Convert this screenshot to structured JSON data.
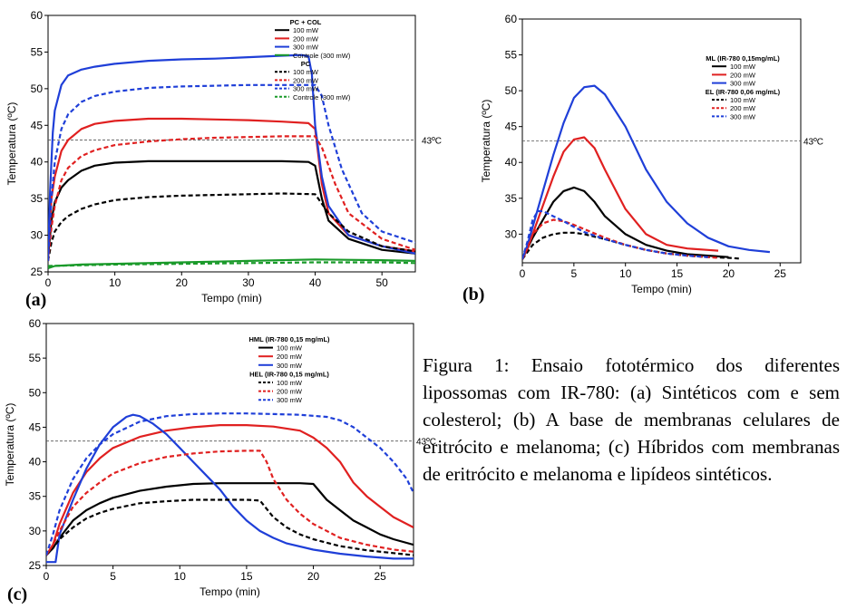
{
  "caption": "Figura 1: Ensaio fototérmico dos diferentes lipossomas com IR-780: (a) Sintéticos com e sem colesterol; (b) A base de membranas celulares de eritrócito e melanoma; (c) Híbridos com membranas de eritrócito e melanoma e lipídeos sintéticos.",
  "chart_data": [
    {
      "panel_label": "(a)",
      "type": "line",
      "xlabel": "Tempo (min)",
      "ylabel": "Temperatura (ºC)",
      "xlim": [
        0,
        55
      ],
      "ylim": [
        25,
        60
      ],
      "xticks": [
        0,
        10,
        20,
        30,
        40,
        50
      ],
      "yticks": [
        25,
        30,
        35,
        40,
        45,
        50,
        55,
        60
      ],
      "reference_line": {
        "y": 43,
        "label": "43ºC"
      },
      "legend_groups": [
        {
          "title": "PC + COL",
          "entries": [
            "100 mW",
            "200 mW",
            "300 mW",
            "Controle (300 mW)"
          ]
        },
        {
          "title": "PC",
          "entries": [
            "100 mW",
            "200 mW",
            "300 mW",
            "Controle (300 mW)"
          ]
        }
      ],
      "series": [
        {
          "group": "PC + COL",
          "color": "#000000",
          "dash": false,
          "x": [
            0,
            0.5,
            1,
            2,
            3,
            5,
            7,
            10,
            15,
            20,
            25,
            30,
            35,
            39,
            40,
            41,
            42,
            45,
            50,
            55
          ],
          "y": [
            27,
            32,
            34.5,
            36.5,
            37.5,
            38.8,
            39.5,
            39.9,
            40.1,
            40.1,
            40.1,
            40.1,
            40.1,
            40,
            39.5,
            35,
            32,
            29.5,
            28,
            27.5
          ]
        },
        {
          "group": "PC + COL",
          "color": "#e02020",
          "dash": false,
          "x": [
            0,
            0.5,
            1,
            2,
            3,
            5,
            7,
            10,
            15,
            20,
            25,
            30,
            35,
            39,
            40,
            41,
            42,
            45,
            50,
            55
          ],
          "y": [
            27,
            35,
            38,
            41.5,
            43,
            44.5,
            45.2,
            45.6,
            45.9,
            45.9,
            45.8,
            45.7,
            45.5,
            45.3,
            44.5,
            37,
            33,
            30,
            28.5,
            27.8
          ]
        },
        {
          "group": "PC + COL",
          "color": "#1f3fd8",
          "dash": false,
          "x": [
            0,
            0.3,
            0.7,
            1,
            2,
            3,
            5,
            7,
            10,
            15,
            20,
            25,
            30,
            35,
            38,
            39,
            39.5,
            40,
            41,
            42,
            45,
            50,
            55
          ],
          "y": [
            27,
            36,
            44,
            47,
            50.5,
            51.8,
            52.6,
            53,
            53.4,
            53.8,
            54,
            54.1,
            54.3,
            54.5,
            54.6,
            54.4,
            52,
            45,
            38,
            34,
            30,
            28.5,
            27.5
          ]
        },
        {
          "group": "PC + COL",
          "color": "#1a9a2a",
          "dash": false,
          "x": [
            0,
            1,
            5,
            10,
            20,
            30,
            40,
            50,
            55
          ],
          "y": [
            25.5,
            25.8,
            26,
            26.1,
            26.3,
            26.5,
            26.7,
            26.6,
            26.5
          ]
        },
        {
          "group": "PC",
          "color": "#000000",
          "dash": true,
          "x": [
            0,
            0.5,
            1,
            2,
            3,
            5,
            7,
            10,
            15,
            20,
            25,
            30,
            35,
            40,
            42,
            45,
            50,
            55
          ],
          "y": [
            26.5,
            29,
            30.5,
            31.8,
            32.6,
            33.6,
            34.2,
            34.8,
            35.2,
            35.4,
            35.5,
            35.6,
            35.7,
            35.6,
            33,
            30.5,
            28.5,
            27.8
          ]
        },
        {
          "group": "PC",
          "color": "#e02020",
          "dash": true,
          "x": [
            0,
            0.5,
            1,
            2,
            3,
            5,
            7,
            10,
            15,
            20,
            25,
            30,
            35,
            40,
            41,
            43,
            45,
            50,
            55
          ],
          "y": [
            26.5,
            31,
            34,
            37.5,
            39.2,
            40.8,
            41.6,
            42.3,
            42.8,
            43.1,
            43.3,
            43.4,
            43.5,
            43.5,
            42,
            37,
            33,
            29.5,
            28
          ]
        },
        {
          "group": "PC",
          "color": "#1f3fd8",
          "dash": true,
          "x": [
            0,
            0.5,
            1,
            2,
            3,
            5,
            7,
            10,
            15,
            20,
            25,
            30,
            35,
            40,
            41,
            42,
            44,
            47,
            50,
            55
          ],
          "y": [
            26.5,
            35,
            40,
            44.5,
            46.5,
            48.2,
            49,
            49.6,
            50.1,
            50.3,
            50.4,
            50.5,
            50.5,
            50.5,
            49,
            45,
            39,
            33,
            30.5,
            29
          ]
        },
        {
          "group": "PC",
          "color": "#1a9a2a",
          "dash": true,
          "x": [
            0,
            10,
            20,
            30,
            40,
            50,
            55
          ],
          "y": [
            25.8,
            26,
            26.1,
            26.2,
            26.3,
            26.3,
            26.2
          ]
        }
      ]
    },
    {
      "panel_label": "(b)",
      "type": "line",
      "xlabel": "Tempo (min)",
      "ylabel": "Temperatura (ºC)",
      "xlim": [
        0,
        27
      ],
      "ylim": [
        26,
        60
      ],
      "xticks": [
        0,
        5,
        10,
        15,
        20,
        25
      ],
      "yticks": [
        30,
        35,
        40,
        45,
        50,
        55,
        60
      ],
      "reference_line": {
        "y": 43,
        "label": "43ºC"
      },
      "legend_groups": [
        {
          "title": "ML (IR-780 0,15mg/mL)",
          "entries": [
            "100 mW",
            "200 mW",
            "300 mW"
          ]
        },
        {
          "title": "EL (IR-780 0,06 mg/mL)",
          "entries": [
            "100 mW",
            "200 mW",
            "300 mW"
          ]
        }
      ],
      "series": [
        {
          "group": "ML",
          "color": "#000000",
          "dash": false,
          "x": [
            0,
            0.5,
            1,
            2,
            3,
            4,
            5,
            6,
            7,
            8,
            10,
            12,
            14,
            16,
            18,
            20
          ],
          "y": [
            26.5,
            28,
            29.5,
            32,
            34.5,
            36,
            36.5,
            36,
            34.5,
            32.5,
            30,
            28.5,
            27.7,
            27.2,
            27,
            26.8
          ]
        },
        {
          "group": "ML",
          "color": "#e02020",
          "dash": false,
          "x": [
            0,
            0.5,
            1,
            2,
            3,
            4,
            5,
            6,
            7,
            8,
            10,
            12,
            14,
            16,
            18,
            19
          ],
          "y": [
            26.5,
            28,
            30,
            34,
            38,
            41.5,
            43.2,
            43.5,
            42,
            39,
            33.5,
            30,
            28.5,
            28,
            27.8,
            27.7
          ]
        },
        {
          "group": "ML",
          "color": "#1f3fd8",
          "dash": false,
          "x": [
            0,
            0.5,
            1,
            2,
            3,
            4,
            5,
            6,
            7,
            8,
            10,
            12,
            14,
            16,
            18,
            20,
            22,
            24
          ],
          "y": [
            26.5,
            28.5,
            31,
            36,
            41,
            45.5,
            49,
            50.5,
            50.7,
            49.5,
            45,
            39,
            34.5,
            31.5,
            29.5,
            28.3,
            27.8,
            27.5
          ]
        },
        {
          "group": "EL",
          "color": "#000000",
          "dash": true,
          "x": [
            0,
            0.5,
            1,
            2,
            3,
            4,
            5,
            6,
            8,
            10,
            12,
            14,
            16,
            18,
            20,
            21
          ],
          "y": [
            26.5,
            27.5,
            28.5,
            29.5,
            30,
            30.2,
            30.2,
            30,
            29.3,
            28.5,
            27.8,
            27.3,
            27,
            26.8,
            26.7,
            26.6
          ]
        },
        {
          "group": "EL",
          "color": "#e02020",
          "dash": true,
          "x": [
            0,
            0.5,
            1,
            2,
            3,
            4,
            5,
            6,
            8,
            10,
            12,
            14,
            16,
            18,
            19
          ],
          "y": [
            26.5,
            28,
            30,
            31.5,
            32,
            31.8,
            31.3,
            30.7,
            29.5,
            28.5,
            27.8,
            27.3,
            27,
            26.8,
            26.7
          ]
        },
        {
          "group": "EL",
          "color": "#1f3fd8",
          "dash": true,
          "x": [
            0,
            0.5,
            1,
            1.5,
            2,
            3,
            4,
            5,
            6,
            8,
            10,
            12,
            14,
            16,
            18
          ],
          "y": [
            26.5,
            29,
            32,
            33.2,
            33.2,
            32.5,
            31.8,
            31,
            30.3,
            29.3,
            28.5,
            27.8,
            27.3,
            27,
            26.8
          ]
        }
      ]
    },
    {
      "panel_label": "(c)",
      "type": "line",
      "xlabel": "Tempo (min)",
      "ylabel": "Temperatura (ºC)",
      "xlim": [
        0,
        27.5
      ],
      "ylim": [
        25,
        60
      ],
      "xticks": [
        0,
        5,
        10,
        15,
        20,
        25
      ],
      "yticks": [
        25,
        30,
        35,
        40,
        45,
        50,
        55,
        60
      ],
      "reference_line": {
        "y": 43,
        "label": "43ºC"
      },
      "legend_groups": [
        {
          "title": "HML (IR-780 0,15 mg/mL)",
          "entries": [
            "100 mW",
            "200 mW",
            "300 mW"
          ]
        },
        {
          "title": "HEL (IR-780 0,15 mg/mL)",
          "entries": [
            "100 mW",
            "200 mW",
            "300 mW"
          ]
        }
      ],
      "series": [
        {
          "group": "HML",
          "color": "#000000",
          "dash": false,
          "x": [
            0,
            0.5,
            1,
            2,
            3,
            4,
            5,
            7,
            9,
            11,
            13,
            15,
            17,
            19,
            20,
            21,
            22,
            23,
            24,
            25,
            26,
            27.5
          ],
          "y": [
            26.5,
            27.5,
            29,
            31.5,
            33,
            34,
            34.8,
            35.8,
            36.4,
            36.8,
            36.9,
            36.9,
            36.9,
            36.9,
            36.8,
            34.5,
            33,
            31.5,
            30.5,
            29.5,
            28.8,
            28
          ]
        },
        {
          "group": "HML",
          "color": "#e02020",
          "dash": false,
          "x": [
            0,
            0.5,
            1,
            2,
            3,
            4,
            5,
            7,
            9,
            11,
            13,
            15,
            17,
            19,
            20,
            21,
            22,
            23,
            24,
            25,
            26,
            27.5
          ],
          "y": [
            26.5,
            28,
            31,
            35.5,
            38.5,
            40.5,
            42,
            43.6,
            44.5,
            45,
            45.3,
            45.3,
            45.1,
            44.5,
            43.5,
            42,
            40,
            37,
            35,
            33.5,
            32,
            30.5
          ]
        },
        {
          "group": "HML",
          "color": "#1f3fd8",
          "dash": false,
          "x": [
            0,
            0.7,
            1,
            2,
            3,
            4,
            5,
            6,
            6.5,
            7,
            8,
            9,
            10,
            11,
            12,
            13,
            14,
            15,
            16,
            17,
            18,
            20,
            22,
            24,
            26,
            27.5
          ],
          "y": [
            25.5,
            25.5,
            29.5,
            34.5,
            39,
            42.5,
            45,
            46.5,
            46.8,
            46.6,
            45.5,
            44,
            42,
            40,
            38,
            36,
            33.5,
            31.5,
            30,
            29,
            28.2,
            27.3,
            26.7,
            26.3,
            26,
            26
          ]
        },
        {
          "group": "HEL",
          "color": "#000000",
          "dash": true,
          "x": [
            0,
            0.5,
            1,
            2,
            3,
            4,
            5,
            7,
            9,
            11,
            13,
            15,
            16,
            17,
            18,
            19,
            20,
            22,
            24,
            26,
            27.5
          ],
          "y": [
            26.5,
            27.5,
            28.8,
            30.5,
            31.8,
            32.6,
            33.2,
            34,
            34.3,
            34.5,
            34.5,
            34.5,
            34.4,
            32,
            30.5,
            29.5,
            28.8,
            27.8,
            27.2,
            26.8,
            26.5
          ]
        },
        {
          "group": "HEL",
          "color": "#e02020",
          "dash": true,
          "x": [
            0,
            0.5,
            1,
            2,
            3,
            4,
            5,
            7,
            9,
            11,
            13,
            15,
            16,
            16.5,
            17,
            18,
            19,
            20,
            22,
            24,
            26,
            27.5
          ],
          "y": [
            26.5,
            28,
            30,
            33.5,
            35.5,
            37,
            38.3,
            39.8,
            40.7,
            41.2,
            41.5,
            41.6,
            41.6,
            40,
            37.5,
            34.5,
            32.5,
            31,
            29,
            28,
            27.3,
            27
          ]
        },
        {
          "group": "HEL",
          "color": "#1f3fd8",
          "dash": true,
          "x": [
            0,
            0.5,
            1,
            2,
            3,
            4,
            5,
            7,
            9,
            11,
            13,
            15,
            17,
            19,
            21,
            22,
            23,
            24,
            25,
            26,
            27,
            27.5
          ],
          "y": [
            26.5,
            29.5,
            33,
            37.5,
            40.5,
            42.5,
            44,
            45.8,
            46.6,
            46.9,
            47,
            47,
            46.9,
            46.8,
            46.5,
            46,
            45,
            43.5,
            42,
            40,
            37.5,
            35.5
          ]
        }
      ]
    }
  ]
}
